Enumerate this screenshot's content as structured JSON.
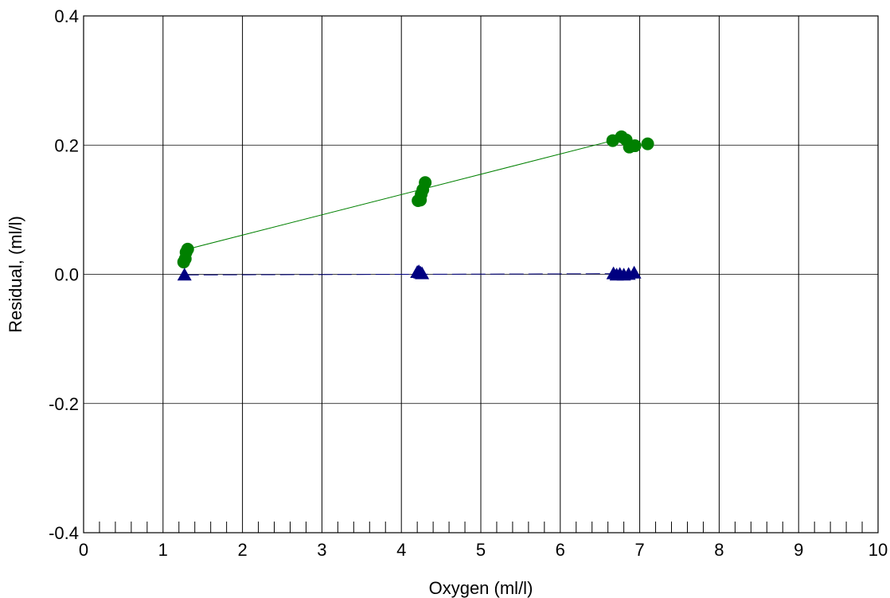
{
  "chart_data": {
    "type": "scatter",
    "title": "",
    "xlabel": "Oxygen (ml/l)",
    "ylabel": "Residual, (ml/l)",
    "xlim": [
      0,
      10
    ],
    "ylim": [
      -0.4,
      0.4
    ],
    "x_ticks": [
      0,
      1,
      2,
      3,
      4,
      5,
      6,
      7,
      8,
      9,
      10
    ],
    "y_ticks": [
      -0.4,
      -0.2,
      0.0,
      0.2,
      0.4
    ],
    "x_tick_labels": [
      "0",
      "1",
      "2",
      "3",
      "4",
      "5",
      "6",
      "7",
      "8",
      "9",
      "10"
    ],
    "y_tick_labels": [
      "-0.4",
      "-0.2",
      "0.0",
      "0.2",
      "0.4"
    ],
    "grid": true,
    "x_minor_ticks_per_major": 5,
    "series": [
      {
        "marker": "circle",
        "color": "#008000",
        "line": "solid",
        "points": [
          {
            "x": 1.26,
            "y": 0.019
          },
          {
            "x": 1.28,
            "y": 0.024
          },
          {
            "x": 1.29,
            "y": 0.034
          },
          {
            "x": 1.31,
            "y": 0.039
          },
          {
            "x": 4.21,
            "y": 0.114
          },
          {
            "x": 4.24,
            "y": 0.115
          },
          {
            "x": 4.25,
            "y": 0.124
          },
          {
            "x": 4.27,
            "y": 0.131
          },
          {
            "x": 4.3,
            "y": 0.142
          },
          {
            "x": 6.66,
            "y": 0.207
          },
          {
            "x": 6.77,
            "y": 0.213
          },
          {
            "x": 6.83,
            "y": 0.208
          },
          {
            "x": 6.87,
            "y": 0.197
          },
          {
            "x": 6.94,
            "y": 0.199
          },
          {
            "x": 7.1,
            "y": 0.202
          }
        ],
        "fit_line": [
          {
            "x": 1.31,
            "y": 0.039
          },
          {
            "x": 6.66,
            "y": 0.207
          }
        ]
      },
      {
        "marker": "triangle",
        "color": "#000080",
        "line": "dashed",
        "points": [
          {
            "x": 1.27,
            "y": -0.002
          },
          {
            "x": 4.2,
            "y": 0.002
          },
          {
            "x": 4.22,
            "y": 0.003
          },
          {
            "x": 4.24,
            "y": 0.001
          },
          {
            "x": 4.26,
            "y": 0.0
          },
          {
            "x": 6.67,
            "y": 0.0
          },
          {
            "x": 6.71,
            "y": -0.002
          },
          {
            "x": 6.75,
            "y": -0.001
          },
          {
            "x": 6.8,
            "y": -0.002
          },
          {
            "x": 6.86,
            "y": -0.001
          },
          {
            "x": 6.93,
            "y": 0.001
          }
        ],
        "fit_line": [
          {
            "x": 1.27,
            "y": -0.001
          },
          {
            "x": 6.93,
            "y": 0.001
          }
        ]
      }
    ]
  }
}
